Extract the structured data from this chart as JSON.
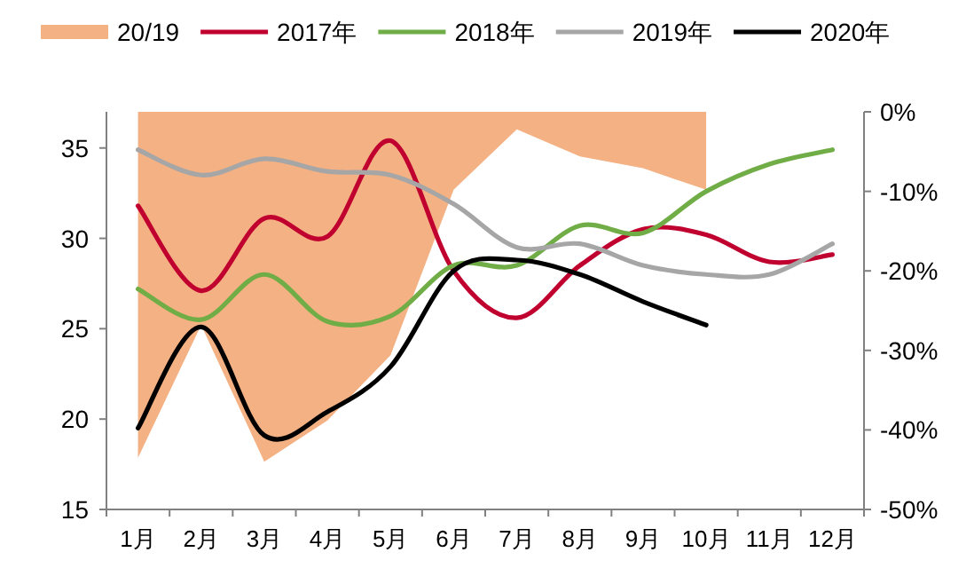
{
  "chart_data": {
    "type": "line",
    "categories": [
      "1月",
      "2月",
      "3月",
      "4月",
      "5月",
      "6月",
      "7月",
      "8月",
      "9月",
      "10月",
      "11月",
      "12月"
    ],
    "ylim": [
      15,
      37
    ],
    "yticks": [
      15,
      20,
      25,
      30,
      35
    ],
    "y2lim": [
      -50,
      0
    ],
    "y2ticks": [
      {
        "value": -50,
        "label": "-50%"
      },
      {
        "value": -40,
        "label": "-40%"
      },
      {
        "value": -30,
        "label": "-30%"
      },
      {
        "value": -20,
        "label": "-20%"
      },
      {
        "value": -10,
        "label": "-10%"
      },
      {
        "value": 0,
        "label": "0%"
      }
    ],
    "legend": "top",
    "grid": false,
    "marker": "none",
    "series": [
      {
        "name": "20/19",
        "type": "area",
        "axis": "y2",
        "color": "#f4b183",
        "values": [
          -43.5,
          -26.8,
          -44,
          -38.8,
          -30.6,
          -9.8,
          -2.2,
          -5.6,
          -7.1,
          -9.8,
          null,
          null
        ]
      },
      {
        "name": "2017年",
        "color": "#c0002f",
        "values": [
          31.8,
          27.1,
          31.1,
          30.1,
          35.4,
          28.2,
          25.6,
          28.5,
          30.5,
          30.2,
          28.7,
          29.1
        ]
      },
      {
        "name": "2018年",
        "color": "#70ad47",
        "values": [
          27.2,
          25.5,
          28.0,
          25.4,
          25.7,
          28.5,
          28.5,
          30.7,
          30.3,
          32.6,
          34.1,
          34.9
        ]
      },
      {
        "name": "2019年",
        "color": "#a6a6a6",
        "values": [
          34.9,
          33.5,
          34.4,
          33.7,
          33.5,
          31.9,
          29.5,
          29.7,
          28.5,
          28.0,
          28.0,
          29.7
        ]
      },
      {
        "name": "2020年",
        "color": "#000000",
        "values": [
          19.5,
          25.1,
          19.1,
          20.4,
          22.9,
          28.2,
          28.8,
          28.0,
          26.5,
          25.2,
          null,
          null
        ]
      }
    ]
  }
}
